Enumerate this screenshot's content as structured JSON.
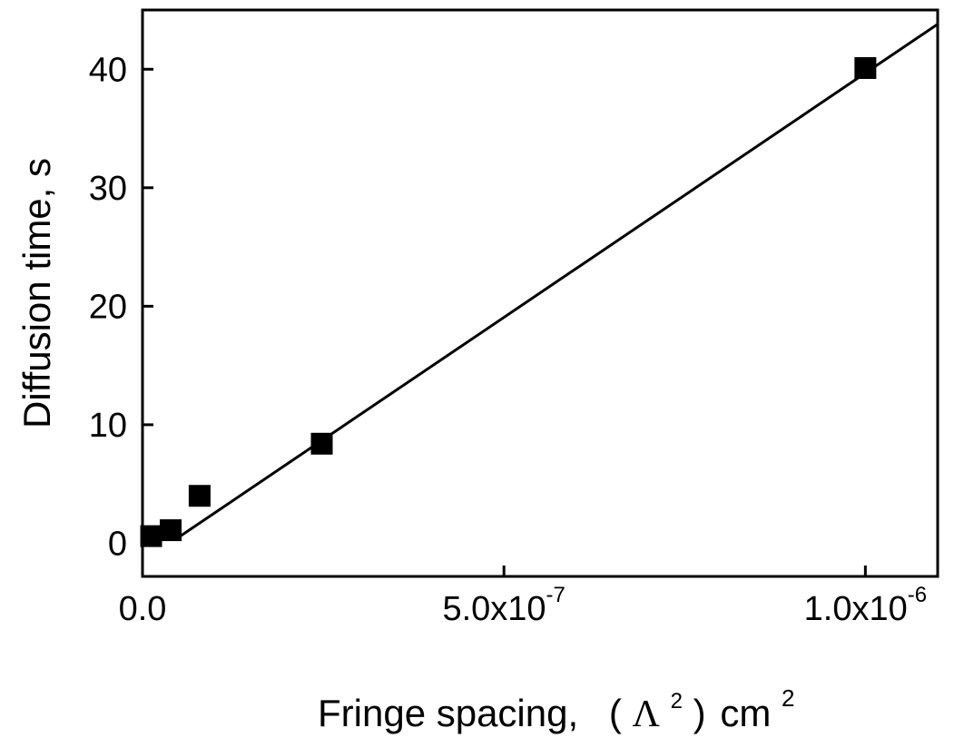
{
  "chart_data": {
    "type": "scatter",
    "title": "",
    "xlabel": {
      "prefix": "Fringe spacing,",
      "open_paren": "(",
      "symbol": "Λ",
      "sup": "2",
      "close_paren": ")",
      "unit": "cm",
      "unit_sup": "2"
    },
    "ylabel": "Diffusion time, s",
    "xlim": [
      0,
      1.1e-06
    ],
    "ylim": [
      -2.8,
      45
    ],
    "grid": false,
    "legend": "none",
    "xticks": [
      {
        "value": 0,
        "base": "0.0",
        "exp": ""
      },
      {
        "value": 5e-07,
        "base": "5.0x10",
        "exp": "-7"
      },
      {
        "value": 1e-06,
        "base": "1.0x10",
        "exp": "-6"
      }
    ],
    "yticks": [
      {
        "value": 0,
        "label": "0"
      },
      {
        "value": 10,
        "label": "10"
      },
      {
        "value": 20,
        "label": "20"
      },
      {
        "value": 30,
        "label": "30"
      },
      {
        "value": 40,
        "label": "40"
      }
    ],
    "series": [
      {
        "marker": "square",
        "color": "#000000",
        "points": [
          {
            "x": 1.2e-08,
            "y": 0.6
          },
          {
            "x": 3.9e-08,
            "y": 1.1
          },
          {
            "x": 7.9e-08,
            "y": 4.0
          },
          {
            "x": 2.48e-07,
            "y": 8.4
          },
          {
            "x": 1e-06,
            "y": 40.1
          }
        ]
      }
    ],
    "fit_line": {
      "color": "#000000",
      "points": [
        {
          "x": 4.5e-08,
          "y": 0.3
        },
        {
          "x": 1.1e-06,
          "y": 43.8
        }
      ]
    }
  }
}
